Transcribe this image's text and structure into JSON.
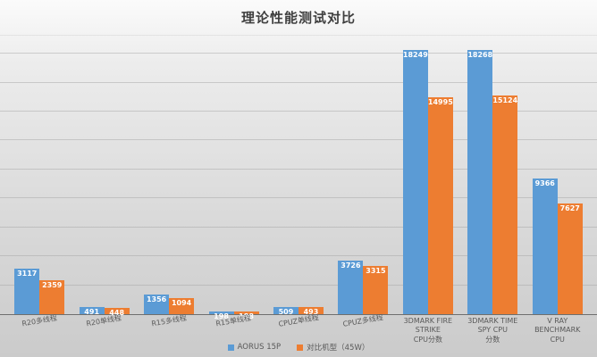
{
  "title": "理论性能测试对比",
  "legend": [
    {
      "label": "AORUS 15P",
      "color": "#5b9bd5"
    },
    {
      "label": "对比机型（45W）",
      "color": "#ed7d31"
    }
  ],
  "colors": {
    "series1": "#5b9bd5",
    "series2": "#ed7d31",
    "axis": "#6e6e6e",
    "gridline": "#a8a8a8",
    "label_text": "#595959",
    "title_text": "#3f3f3f"
  },
  "chart_data": {
    "type": "bar",
    "title": "理论性能测试对比",
    "categories": [
      "R20多线程",
      "R20单线程",
      "R15多线程",
      "R15单线程",
      "CPUZ单线程",
      "CPUZ多线程",
      "3DMARK FIRE STRIKE\nCPU分数",
      "3DMARK TIME SPY CPU\n分数",
      "V RAY BENCHMARK\nCPU"
    ],
    "series": [
      {
        "name": "AORUS 15P",
        "color": "#5b9bd5",
        "values": [
          3117,
          491,
          1356,
          198,
          509,
          3726,
          18249,
          18268,
          9366
        ]
      },
      {
        "name": "对比机型（45W）",
        "color": "#ed7d31",
        "values": [
          2359,
          448,
          1094,
          188,
          493,
          3315,
          14995,
          15124,
          7627
        ]
      }
    ],
    "xlabel": "",
    "ylabel": "",
    "ylim": [
      0,
      19000
    ],
    "grid_interval": 2000,
    "grid": true,
    "y_tick_labels_visible": false,
    "data_labels": "inside-end",
    "legend_position": "bottom"
  }
}
